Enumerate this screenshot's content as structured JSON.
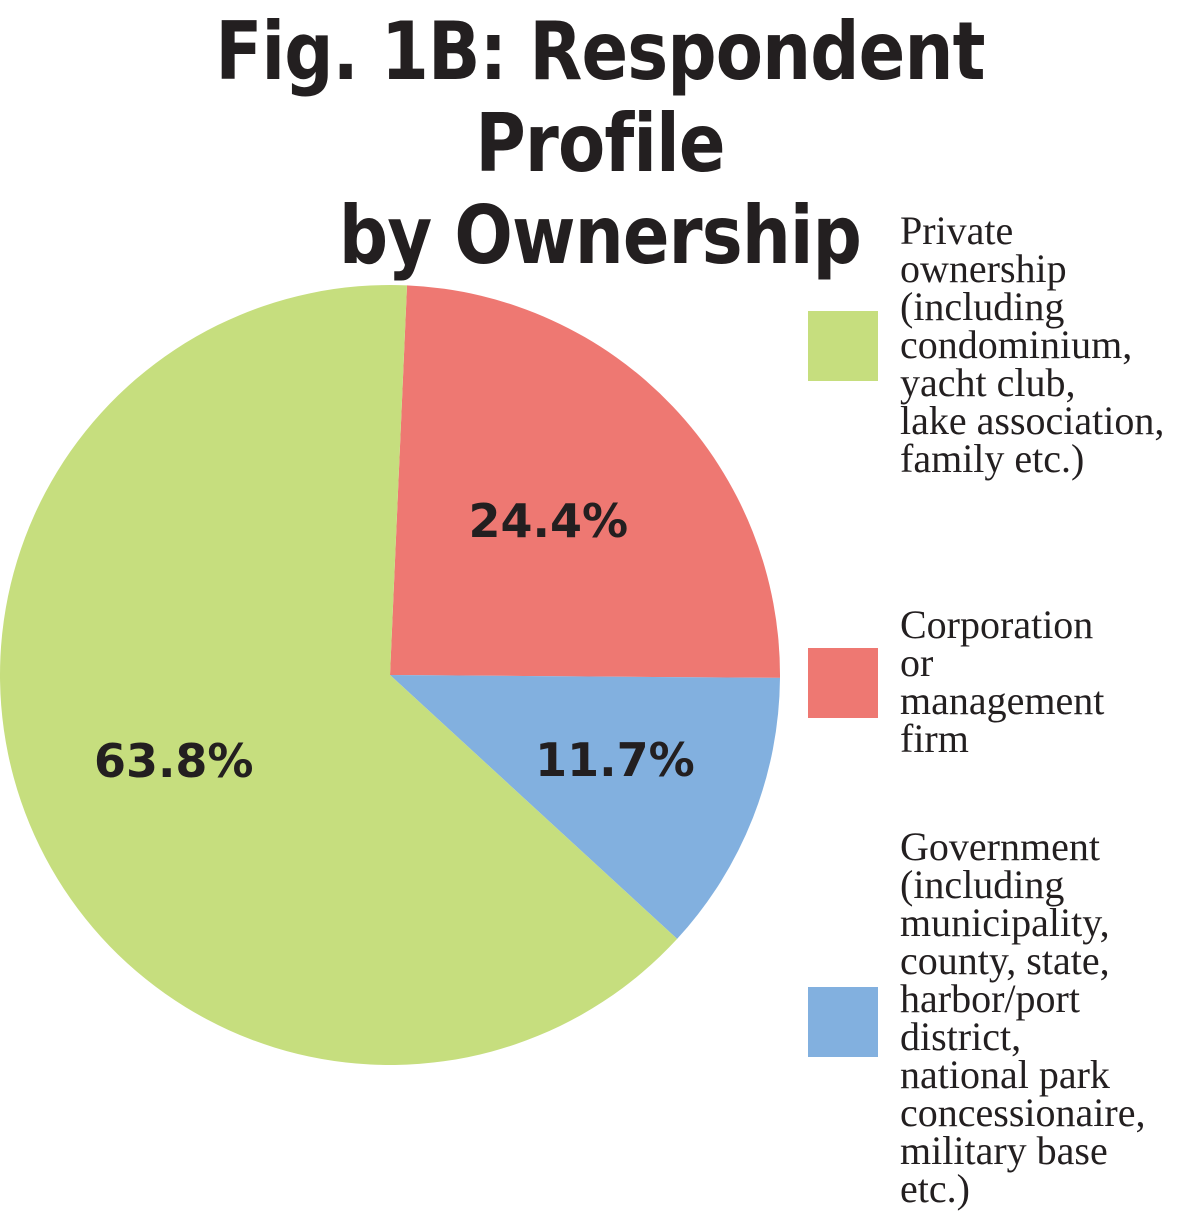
{
  "chart_data": {
    "type": "pie",
    "title": "Fig. 1B: Respondent Profile",
    "title_line2": "by Ownership",
    "slices": [
      {
        "label": "Private ownership (including condominium, yacht club, lake association, family etc.)",
        "legend_text": "Private\nownership\n(including\ncondominium,\nyacht club,\nlake association,\nfamily etc.)",
        "value": 63.8,
        "display": "63.8%",
        "color": "#c6de7e"
      },
      {
        "label": "Corporation or management firm",
        "legend_text": "Corporation\nor\nmanagement\nfirm",
        "value": 24.4,
        "display": "24.4%",
        "color": "#ee7872"
      },
      {
        "label": "Government (including municipality, county, state, harbor/port district, national park concessionaire, military base etc.)",
        "legend_text": "Government\n(including\nmunicipality,\ncounty, state,\nharbor/port\ndistrict,\nnational park\nconcessionaire,\nmilitary base\netc.)",
        "value": 11.7,
        "display": "11.7%",
        "color": "#82b0df"
      }
    ],
    "legend_position": "right"
  }
}
